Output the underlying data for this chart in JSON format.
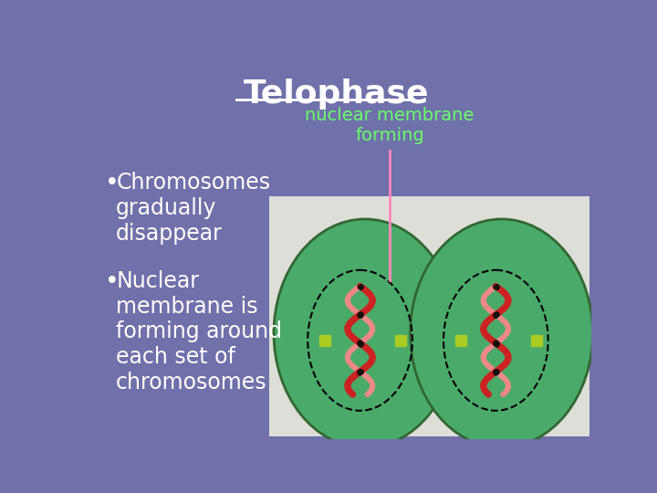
{
  "title": "Telophase",
  "title_fontsize": 26,
  "title_color": "white",
  "background_color": "#7070aa",
  "label_nuclear": "nuclear membrane\nforming",
  "label_nuclear_color": "#66ff66",
  "label_nuclear_fontsize": 14,
  "bullet1": "Chromosomes\ngradually\ndisappear",
  "bullet2": "Nuclear\nmembrane is\nforming around\neach set of\nchromosomes",
  "bullet_fontsize": 17,
  "bullet_color": "white",
  "cell_bg_color": "#deded8",
  "cell_green": "#4aaa6a",
  "nucleus_dashed_color": "black",
  "arrow_line_color": "#ff88bb",
  "chromosome_red": "#cc2222",
  "chromosome_light": "#ee8888"
}
